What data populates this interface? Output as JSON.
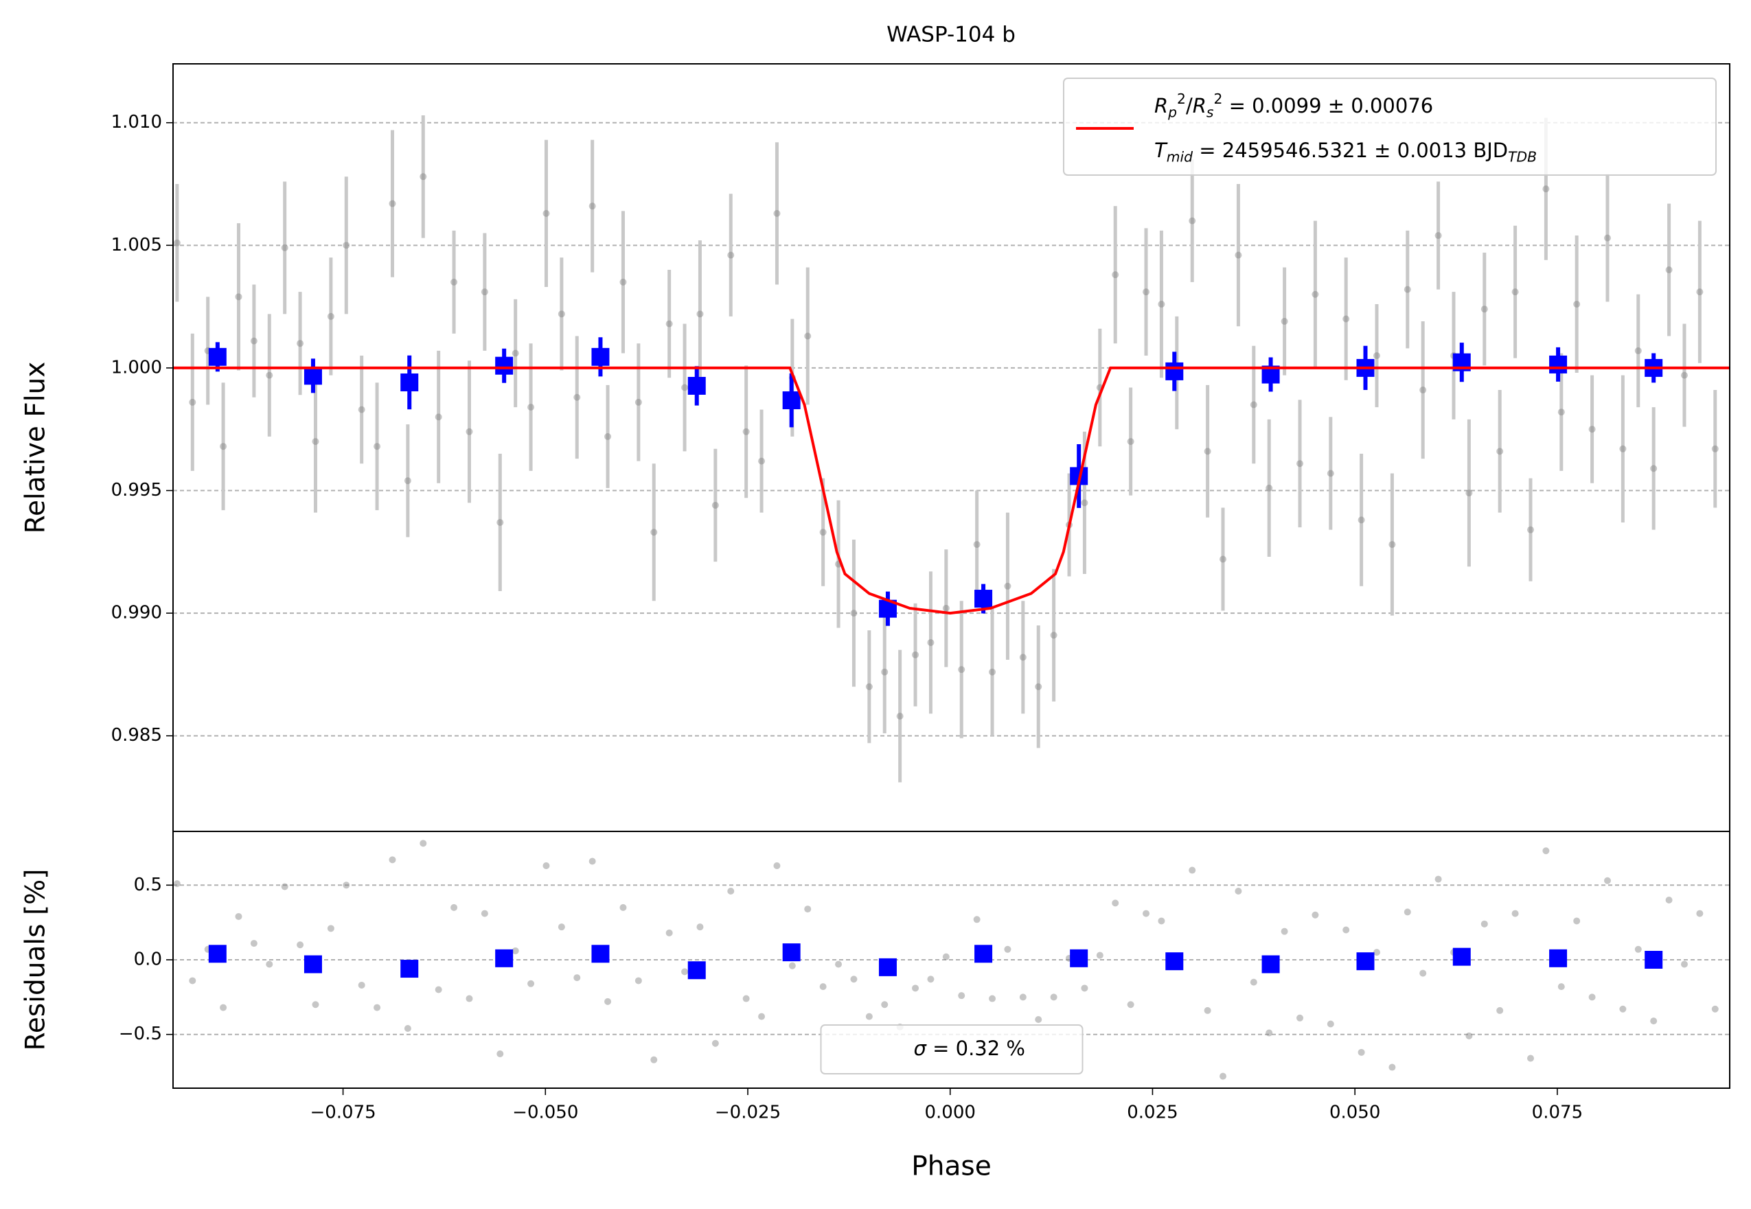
{
  "chart_data": [
    {
      "type": "scatter",
      "title": "WASP-104 b",
      "y_label": "Relative Flux",
      "xlim": [
        -0.096,
        0.0963
      ],
      "ylim": [
        0.9811,
        1.0124
      ],
      "yticks": [
        0.985,
        {
          "value": 0.99,
          "label": "0.990"
        },
        0.995,
        {
          "value": 1.0,
          "label": "1.000"
        },
        1.005,
        {
          "value": 1.01,
          "label": "1.010"
        }
      ],
      "grid": "y",
      "legend": "upper right",
      "series": [
        {
          "color": "#808080",
          "marker": "circle",
          "error_color": "#c8c8c8",
          "x": [
            -0.0955,
            -0.0936,
            -0.0917,
            -0.0898,
            -0.0879,
            -0.086,
            -0.0841,
            -0.0822,
            -0.0803,
            -0.0784,
            -0.0765,
            -0.0746,
            -0.0727,
            -0.0708,
            -0.0689,
            -0.067,
            -0.0651,
            -0.0632,
            -0.0613,
            -0.0594,
            -0.0575,
            -0.0556,
            -0.0537,
            -0.0518,
            -0.0499,
            -0.048,
            -0.0461,
            -0.0442,
            -0.0423,
            -0.0404,
            -0.0385,
            -0.0366,
            -0.0347,
            -0.0328,
            -0.0309,
            -0.029,
            -0.0271,
            -0.0252,
            -0.0233,
            -0.0214,
            -0.0195,
            -0.0176,
            -0.0157,
            -0.0138,
            -0.0119,
            -0.01,
            -0.0081,
            -0.0062,
            -0.0043,
            -0.0024,
            -0.0005,
            0.0014,
            0.0033,
            0.0052,
            0.0071,
            0.009,
            0.0109,
            0.0128,
            0.0147,
            0.0166,
            0.0185,
            0.0204,
            0.0223,
            0.0242,
            0.0261,
            0.028,
            0.0299,
            0.0318,
            0.0337,
            0.0356,
            0.0375,
            0.0394,
            0.0413,
            0.0432,
            0.0451,
            0.047,
            0.0489,
            0.0508,
            0.0527,
            0.0546,
            0.0565,
            0.0584,
            0.0603,
            0.0622,
            0.0641,
            0.066,
            0.0679,
            0.0698,
            0.0717,
            0.0736,
            0.0755,
            0.0774,
            0.0793,
            0.0812,
            0.0831,
            0.085,
            0.0869,
            0.0888,
            0.0907,
            0.0926,
            0.0945
          ],
          "values": [
            1.0051,
            0.9986,
            1.0007,
            0.9968,
            1.0029,
            1.0011,
            0.9997,
            1.0049,
            1.001,
            0.997,
            1.0021,
            1.005,
            0.9983,
            0.9968,
            1.0067,
            0.9954,
            1.0078,
            0.998,
            1.0035,
            0.9974,
            1.0031,
            0.9937,
            1.0006,
            0.9984,
            1.0063,
            1.0022,
            0.9988,
            1.0066,
            0.9972,
            1.0035,
            0.9986,
            0.9933,
            1.0018,
            0.9992,
            1.0022,
            0.9944,
            1.0046,
            0.9974,
            0.9962,
            1.0063,
            0.9996,
            1.0013,
            0.9933,
            0.992,
            0.99,
            0.987,
            0.9876,
            0.9858,
            0.9883,
            0.9888,
            0.9902,
            0.9877,
            0.9928,
            0.9876,
            0.9911,
            0.9882,
            0.987,
            0.9891,
            0.9936,
            0.9945,
            0.9992,
            1.0038,
            0.997,
            1.0031,
            1.0026,
            0.9998,
            1.006,
            0.9966,
            0.9922,
            1.0046,
            0.9985,
            0.9951,
            1.0019,
            0.9961,
            1.003,
            0.9957,
            1.002,
            0.9938,
            1.0005,
            0.9928,
            1.0032,
            0.9991,
            1.0054,
            1.0005,
            0.9949,
            1.0024,
            0.9966,
            1.0031,
            0.9934,
            1.0073,
            0.9982,
            1.0026,
            0.9975,
            1.0053,
            0.9967,
            1.0007,
            0.9959,
            1.004,
            0.9997,
            1.0031,
            0.9967
          ],
          "errors": [
            0.0024,
            0.0028,
            0.0022,
            0.0026,
            0.003,
            0.0023,
            0.0025,
            0.0027,
            0.0021,
            0.0029,
            0.0024,
            0.0028,
            0.0022,
            0.0026,
            0.003,
            0.0023,
            0.0025,
            0.0027,
            0.0021,
            0.0029,
            0.0024,
            0.0028,
            0.0022,
            0.0026,
            0.003,
            0.0023,
            0.0025,
            0.0027,
            0.0021,
            0.0029,
            0.0024,
            0.0028,
            0.0022,
            0.0026,
            0.003,
            0.0023,
            0.0025,
            0.0027,
            0.0021,
            0.0029,
            0.0024,
            0.0028,
            0.0022,
            0.0026,
            0.003,
            0.0023,
            0.0025,
            0.0027,
            0.0021,
            0.0029,
            0.0024,
            0.0028,
            0.0022,
            0.0026,
            0.003,
            0.0023,
            0.0025,
            0.0027,
            0.0021,
            0.0029,
            0.0024,
            0.0028,
            0.0022,
            0.0026,
            0.003,
            0.0023,
            0.0025,
            0.0027,
            0.0021,
            0.0029,
            0.0024,
            0.0028,
            0.0022,
            0.0026,
            0.003,
            0.0023,
            0.0025,
            0.0027,
            0.0021,
            0.0029,
            0.0024,
            0.0028,
            0.0022,
            0.0026,
            0.003,
            0.0023,
            0.0025,
            0.0027,
            0.0021,
            0.0029,
            0.0024,
            0.0028,
            0.0022,
            0.0026,
            0.003,
            0.0023,
            0.0025,
            0.0027,
            0.0021,
            0.0029,
            0.0024
          ]
        },
        {
          "color": "#0000ff",
          "marker": "square",
          "error_color": "#0000ff",
          "x": [
            -0.0905,
            -0.0787,
            -0.0668,
            -0.0551,
            -0.0432,
            -0.0313,
            -0.0196,
            -0.0077,
            0.0041,
            0.0159,
            0.0277,
            0.0396,
            0.0513,
            0.0632,
            0.0751,
            0.0869
          ],
          "values": [
            1.00045,
            0.99968,
            0.99941,
            1.00009,
            1.00045,
            0.99927,
            0.99868,
            0.99018,
            0.99059,
            0.99559,
            0.99986,
            0.99973,
            1.0,
            1.00023,
            1.00014,
            1.0
          ],
          "errors": [
            0.0006,
            0.0007,
            0.0011,
            0.0007,
            0.0008,
            0.0008,
            0.0011,
            0.0007,
            0.0006,
            0.0013,
            0.0008,
            0.0007,
            0.0009,
            0.0008,
            0.0007,
            0.0006
          ]
        },
        {
          "type": "line",
          "color": "#ff0000",
          "name": [
            [
              {
                "text": "R",
                "italic": true
              },
              {
                "text": "p",
                "italic": true,
                "pos": "sub"
              },
              {
                "text": "2",
                "pos": "sup"
              },
              {
                "text": "/"
              },
              {
                "text": "R",
                "italic": true
              },
              {
                "text": "s",
                "italic": true,
                "pos": "sub"
              },
              {
                "text": "2",
                "pos": "sup"
              },
              {
                "text": " = 0.0099 ± 0.00076"
              }
            ],
            [
              {
                "text": "T",
                "italic": true
              },
              {
                "text": "mid",
                "italic": true,
                "pos": "sub"
              },
              {
                "text": " = 2459546.5321 ± 0.0013 BJD"
              },
              {
                "text": "TDB",
                "italic": true,
                "pos": "sub"
              }
            ]
          ],
          "x": [
            -0.096,
            -0.0198,
            -0.018,
            -0.016,
            -0.014,
            -0.013,
            -0.01,
            -0.005,
            0,
            0.005,
            0.01,
            0.013,
            0.014,
            0.016,
            0.018,
            0.0198,
            0.0963
          ],
          "values": [
            1.0,
            1.0,
            0.9985,
            0.9955,
            0.9925,
            0.9916,
            0.9908,
            0.9902,
            0.99,
            0.9902,
            0.9908,
            0.9916,
            0.9925,
            0.9955,
            0.9985,
            1.0,
            1.0
          ]
        }
      ]
    },
    {
      "type": "scatter",
      "y_label": "Residuals [%]",
      "x_label": "Phase",
      "xlim": [
        -0.096,
        0.0963
      ],
      "ylim": [
        -0.86,
        0.86
      ],
      "xticks": [
        {
          "value": -0.075,
          "label": "−0.075"
        },
        {
          "value": -0.05,
          "label": "−0.050"
        },
        {
          "value": -0.025,
          "label": "−0.025"
        },
        {
          "value": 0,
          "label": "0.000"
        },
        0.025,
        {
          "value": 0.05,
          "label": "0.050"
        },
        0.075
      ],
      "yticks": [
        {
          "value": -0.5,
          "label": "−0.5"
        },
        {
          "value": 0,
          "label": "0.0"
        },
        0.5
      ],
      "grid": "y",
      "legend": "lower center",
      "legend_text": [
        {
          "text": "σ",
          "italic": true
        },
        {
          "text": " = 0.32 %"
        }
      ],
      "series": [
        {
          "color": "#808080",
          "marker": "circle",
          "x": [
            -0.0955,
            -0.0936,
            -0.0917,
            -0.0898,
            -0.0879,
            -0.086,
            -0.0841,
            -0.0822,
            -0.0803,
            -0.0784,
            -0.0765,
            -0.0746,
            -0.0727,
            -0.0708,
            -0.0689,
            -0.067,
            -0.0651,
            -0.0632,
            -0.0613,
            -0.0594,
            -0.0575,
            -0.0556,
            -0.0537,
            -0.0518,
            -0.0499,
            -0.048,
            -0.0461,
            -0.0442,
            -0.0423,
            -0.0404,
            -0.0385,
            -0.0366,
            -0.0347,
            -0.0328,
            -0.0309,
            -0.029,
            -0.0271,
            -0.0252,
            -0.0233,
            -0.0214,
            -0.0195,
            -0.0176,
            -0.0157,
            -0.0138,
            -0.0119,
            -0.01,
            -0.0081,
            -0.0062,
            -0.0043,
            -0.0024,
            -0.0005,
            0.0014,
            0.0033,
            0.0052,
            0.0071,
            0.009,
            0.0109,
            0.0128,
            0.0147,
            0.0166,
            0.0185,
            0.0204,
            0.0223,
            0.0242,
            0.0261,
            0.028,
            0.0299,
            0.0318,
            0.0337,
            0.0356,
            0.0375,
            0.0394,
            0.0413,
            0.0432,
            0.0451,
            0.047,
            0.0489,
            0.0508,
            0.0527,
            0.0546,
            0.0565,
            0.0584,
            0.0603,
            0.0622,
            0.0641,
            0.066,
            0.0679,
            0.0698,
            0.0717,
            0.0736,
            0.0755,
            0.0774,
            0.0793,
            0.0812,
            0.0831,
            0.085,
            0.0869,
            0.0888,
            0.0907,
            0.0926,
            0.0945
          ],
          "values": [
            0.51,
            -0.14,
            0.07,
            -0.32,
            0.29,
            0.11,
            -0.03,
            0.49,
            0.1,
            -0.3,
            0.21,
            0.5,
            -0.17,
            -0.32,
            0.67,
            -0.46,
            0.78,
            -0.2,
            0.35,
            -0.26,
            0.31,
            -0.63,
            0.06,
            -0.16,
            0.63,
            0.22,
            -0.12,
            0.66,
            -0.28,
            0.35,
            -0.14,
            -0.67,
            0.18,
            -0.08,
            0.22,
            -0.56,
            0.46,
            -0.26,
            -0.38,
            0.63,
            -0.04,
            0.34,
            -0.18,
            -0.03,
            -0.13,
            -0.38,
            -0.3,
            -0.45,
            -0.19,
            -0.13,
            0.02,
            -0.24,
            0.27,
            -0.26,
            0.07,
            -0.25,
            -0.4,
            -0.25,
            0.01,
            -0.19,
            0.03,
            0.38,
            -0.3,
            0.31,
            0.26,
            -0.02,
            0.6,
            -0.34,
            -0.78,
            0.46,
            -0.15,
            -0.49,
            0.19,
            -0.39,
            0.3,
            -0.43,
            0.2,
            -0.62,
            0.05,
            -0.72,
            0.32,
            -0.09,
            0.54,
            0.05,
            -0.51,
            0.24,
            -0.34,
            0.31,
            -0.66,
            0.73,
            -0.18,
            0.26,
            -0.25,
            0.53,
            -0.33,
            0.07,
            -0.41,
            0.4,
            -0.03,
            0.31,
            -0.33
          ]
        },
        {
          "color": "#0000ff",
          "marker": "square",
          "x": [
            -0.0905,
            -0.0787,
            -0.0668,
            -0.0551,
            -0.0432,
            -0.0313,
            -0.0196,
            -0.0077,
            0.0041,
            0.0159,
            0.0277,
            0.0396,
            0.0513,
            0.0632,
            0.0751,
            0.0869
          ],
          "values": [
            0.04,
            -0.03,
            -0.06,
            0.01,
            0.04,
            -0.07,
            0.05,
            -0.05,
            0.04,
            0.01,
            -0.01,
            -0.03,
            -0.01,
            0.02,
            0.01,
            0.0
          ]
        }
      ]
    }
  ]
}
